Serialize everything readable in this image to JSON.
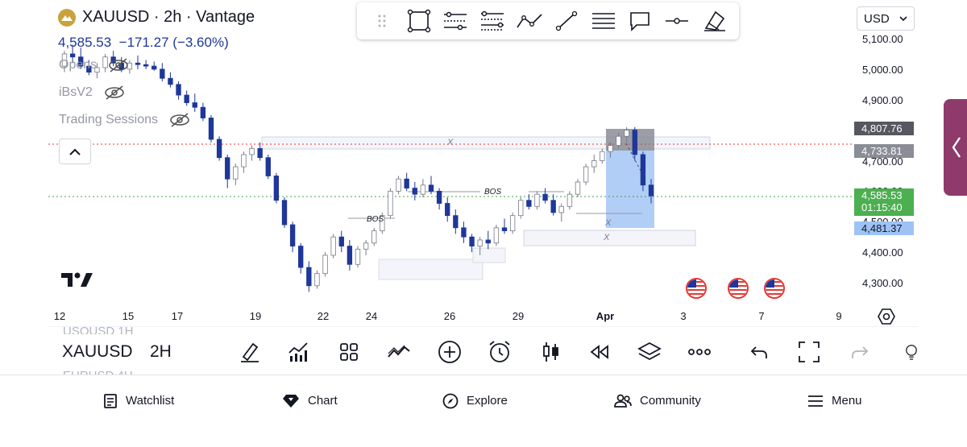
{
  "header": {
    "title": "XAUUSD · 2h · Vantage",
    "price": "4,585.53",
    "change": "−171.27 (−3.60%)"
  },
  "indicators": [
    {
      "label": "Opens"
    },
    {
      "label": "iBsV2"
    },
    {
      "label": "Trading Sessions"
    }
  ],
  "currency": {
    "label": "USD"
  },
  "toolbar": {
    "icons": [
      "drag-handle-icon",
      "rectangle-icon",
      "parallel-channel-icon",
      "fib-retracement-icon",
      "path-icon",
      "trend-line-icon",
      "horizontal-lines-icon",
      "callout-icon",
      "horizontal-ray-icon",
      "eraser-icon"
    ]
  },
  "price_axis": {
    "labels": [
      "5,100.00",
      "5,000.00",
      "4,900.00",
      "4,700.00",
      "4,600.00",
      "4,500.00",
      "4,400.00",
      "4,300.00"
    ],
    "tags": {
      "high": "4,807.76",
      "mid": "4,733.81",
      "last": "4,585.53",
      "countdown": "01:15:40",
      "low": "4,481.37"
    }
  },
  "time_axis": {
    "labels": [
      "12",
      "15",
      "17",
      "19",
      "22",
      "24",
      "26",
      "29",
      "Apr",
      "3",
      "7",
      "9"
    ]
  },
  "annotations": {
    "bos1": "BOS",
    "bos2": "BOS",
    "x1": "X",
    "x2": "X",
    "x3": "X"
  },
  "chart_data": {
    "type": "candlestick",
    "symbol": "XAUUSD",
    "interval": "2h",
    "ylim": [
      4240,
      5140
    ],
    "candles": [
      [
        5010,
        5060,
        4990,
        5050
      ],
      [
        5050,
        5080,
        5020,
        5040
      ],
      [
        5040,
        5070,
        5000,
        5010
      ],
      [
        5010,
        5030,
        4980,
        4990
      ],
      [
        4990,
        5020,
        4970,
        5005
      ],
      [
        5005,
        5050,
        4990,
        5040
      ],
      [
        5040,
        5060,
        5010,
        5020
      ],
      [
        5020,
        5040,
        4990,
        5000
      ],
      [
        5000,
        5030,
        4985,
        5020
      ],
      [
        5020,
        5045,
        5000,
        5015
      ],
      [
        5015,
        5030,
        5000,
        5010
      ],
      [
        5010,
        5025,
        4995,
        5000
      ],
      [
        5000,
        5020,
        4960,
        4970
      ],
      [
        4970,
        4990,
        4940,
        4950
      ],
      [
        4950,
        4960,
        4900,
        4915
      ],
      [
        4915,
        4930,
        4880,
        4890
      ],
      [
        4890,
        4920,
        4860,
        4875
      ],
      [
        4875,
        4890,
        4830,
        4840
      ],
      [
        4840,
        4850,
        4760,
        4770
      ],
      [
        4770,
        4780,
        4700,
        4710
      ],
      [
        4710,
        4720,
        4610,
        4640
      ],
      [
        4640,
        4690,
        4620,
        4680
      ],
      [
        4680,
        4730,
        4660,
        4720
      ],
      [
        4720,
        4750,
        4700,
        4740
      ],
      [
        4740,
        4760,
        4700,
        4710
      ],
      [
        4710,
        4720,
        4640,
        4650
      ],
      [
        4650,
        4660,
        4560,
        4570
      ],
      [
        4570,
        4580,
        4480,
        4490
      ],
      [
        4490,
        4500,
        4400,
        4420
      ],
      [
        4420,
        4430,
        4330,
        4350
      ],
      [
        4350,
        4370,
        4270,
        4290
      ],
      [
        4290,
        4340,
        4280,
        4330
      ],
      [
        4330,
        4400,
        4320,
        4390
      ],
      [
        4390,
        4460,
        4380,
        4450
      ],
      [
        4450,
        4470,
        4400,
        4420
      ],
      [
        4420,
        4440,
        4340,
        4360
      ],
      [
        4360,
        4420,
        4350,
        4410
      ],
      [
        4410,
        4440,
        4390,
        4430
      ],
      [
        4430,
        4480,
        4420,
        4470
      ],
      [
        4470,
        4530,
        4460,
        4520
      ],
      [
        4520,
        4610,
        4510,
        4600
      ],
      [
        4600,
        4650,
        4590,
        4640
      ],
      [
        4640,
        4660,
        4600,
        4610
      ],
      [
        4610,
        4630,
        4570,
        4590
      ],
      [
        4590,
        4640,
        4580,
        4620
      ],
      [
        4620,
        4650,
        4590,
        4600
      ],
      [
        4600,
        4610,
        4540,
        4560
      ],
      [
        4560,
        4580,
        4500,
        4520
      ],
      [
        4520,
        4540,
        4460,
        4480
      ],
      [
        4480,
        4500,
        4430,
        4450
      ],
      [
        4450,
        4460,
        4400,
        4420
      ],
      [
        4420,
        4450,
        4390,
        4440
      ],
      [
        4440,
        4470,
        4410,
        4430
      ],
      [
        4430,
        4490,
        4420,
        4480
      ],
      [
        4480,
        4510,
        4460,
        4470
      ],
      [
        4470,
        4530,
        4460,
        4520
      ],
      [
        4520,
        4580,
        4510,
        4570
      ],
      [
        4570,
        4590,
        4540,
        4550
      ],
      [
        4550,
        4600,
        4540,
        4590
      ],
      [
        4590,
        4610,
        4560,
        4570
      ],
      [
        4570,
        4590,
        4520,
        4530
      ],
      [
        4530,
        4560,
        4500,
        4550
      ],
      [
        4550,
        4600,
        4540,
        4590
      ],
      [
        4590,
        4640,
        4580,
        4630
      ],
      [
        4630,
        4690,
        4620,
        4680
      ],
      [
        4680,
        4720,
        4660,
        4700
      ],
      [
        4700,
        4740,
        4690,
        4730
      ],
      [
        4730,
        4760,
        4710,
        4750
      ],
      [
        4750,
        4790,
        4740,
        4780
      ],
      [
        4780,
        4810,
        4760,
        4800
      ],
      [
        4800,
        4810,
        4700,
        4720
      ],
      [
        4720,
        4730,
        4600,
        4620
      ],
      [
        4620,
        4640,
        4560,
        4585
      ]
    ]
  },
  "bottom_bar": {
    "symbol": "XAUUSD",
    "interval": "2H",
    "ghost_above": "USOUSD 1H",
    "ghost_below": "EURUSD 4H",
    "icons": [
      "draw-brush-icon",
      "indicators-icon",
      "grid-layout-icon",
      "compare-icon",
      "add-icon",
      "alarm-icon",
      "candles-icon",
      "replay-icon",
      "layers-icon",
      "more-icon",
      "undo-icon",
      "fullscreen-icon",
      "redo-icon",
      "idea-icon"
    ]
  },
  "nav": {
    "watchlist": "Watchlist",
    "chart": "Chart",
    "explore": "Explore",
    "community": "Community",
    "menu": "Menu"
  }
}
